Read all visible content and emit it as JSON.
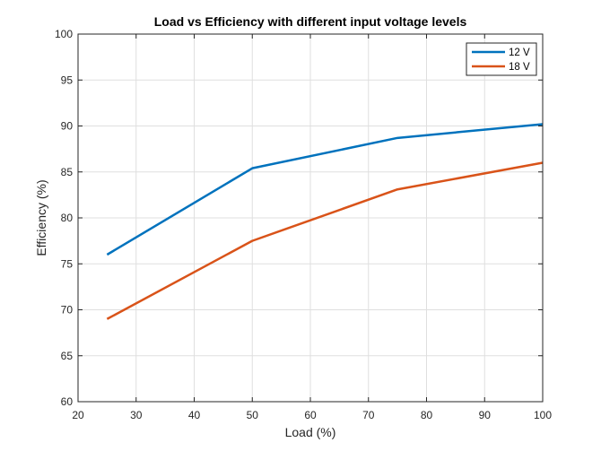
{
  "chart_data": {
    "type": "line",
    "title": "Load vs Efficiency with different input voltage levels",
    "xlabel": "Load (%)",
    "ylabel": "Efficiency (%)",
    "xlim": [
      20,
      100
    ],
    "ylim": [
      60,
      100
    ],
    "xticks": [
      20,
      30,
      40,
      50,
      60,
      70,
      80,
      90,
      100
    ],
    "yticks": [
      60,
      65,
      70,
      75,
      80,
      85,
      90,
      95,
      100
    ],
    "grid": true,
    "legend_position": "top-right",
    "series": [
      {
        "name": "12 V",
        "color": "#0072BD",
        "x": [
          25,
          50,
          75,
          100
        ],
        "y": [
          76.0,
          85.4,
          88.7,
          90.2
        ]
      },
      {
        "name": "18 V",
        "color": "#D95319",
        "x": [
          25,
          50,
          75,
          100
        ],
        "y": [
          69.0,
          77.5,
          83.1,
          86.0
        ]
      }
    ]
  }
}
